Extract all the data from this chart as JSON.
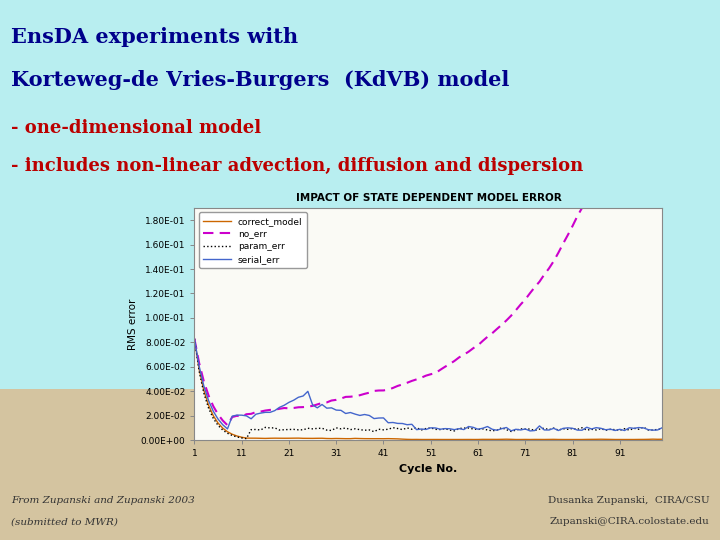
{
  "title_line1": "EnsDA experiments with",
  "title_line2": "Korteweg-de Vries-Burgers  (KdVB) model",
  "subtitle_line1": "- one-dimensional model",
  "subtitle_line2": "- includes non-linear advection, diffusion and dispersion",
  "title_color": "#00008B",
  "subtitle_color": "#BB0000",
  "bg_top_color": "#B0EFEF",
  "bg_bottom_color": "#D4C4A0",
  "chart_title": "IMPACT OF STATE DEPENDENT MODEL ERROR",
  "xlabel": "Cycle No.",
  "ylabel": "RMS error",
  "footer_left_line1": "From Zupanski and Zupanski 2003",
  "footer_left_line2": "(submitted to MWR)",
  "footer_right_line1": "Dusanka Zupanski,  CIRA/CSU",
  "footer_right_line2": "Zupanski@CIRA.colostate.edu",
  "footer_color": "#333333",
  "ytick_vals": [
    0.0,
    0.02,
    0.04,
    0.06,
    0.08,
    0.1,
    0.12,
    0.14,
    0.16,
    0.18
  ],
  "ytick_labels": [
    "0.00E+00",
    "2.00E-02",
    "4.00E-02",
    "6.00E-02",
    "8.00E-02",
    "1.00E-01",
    "1.20E-01",
    "1.40E-01",
    "1.60E-01",
    "1.80E-01"
  ],
  "xticks": [
    1,
    11,
    21,
    31,
    41,
    51,
    61,
    71,
    81,
    91
  ],
  "xlim": [
    1,
    100
  ],
  "ylim": [
    0.0,
    0.19
  ],
  "line_colors": [
    "#CC6600",
    "#CC00CC",
    "#000000",
    "#4466CC"
  ],
  "line_labels": [
    "correct_model",
    "no_err",
    "param_err",
    "serial_err"
  ],
  "correct_model_lw": 1.0,
  "no_err_lw": 1.5,
  "param_err_lw": 1.0,
  "serial_err_lw": 1.0
}
